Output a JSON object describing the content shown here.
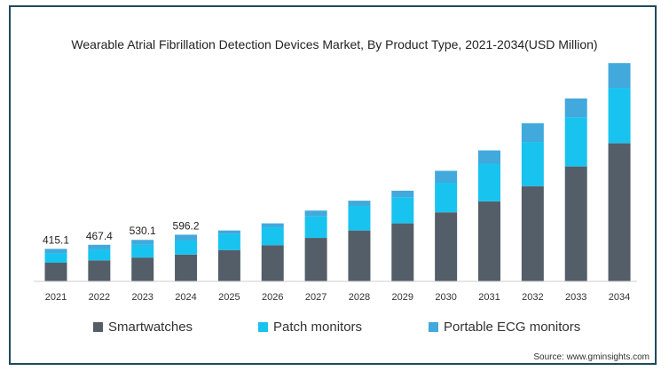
{
  "chart_data": {
    "type": "bar",
    "stacked": true,
    "title": "Wearable Atrial Fibrillation Detection Devices Market, By Product Type, 2021-2034(USD Million)",
    "categories": [
      "2021",
      "2022",
      "2023",
      "2024",
      "2025",
      "2026",
      "2027",
      "2028",
      "2029",
      "2030",
      "2031",
      "2032",
      "2033",
      "2034"
    ],
    "series": [
      {
        "name": "Smartwatches",
        "color": "#545e68",
        "values": [
          238,
          268,
          304,
          342,
          400,
          462,
          555,
          650,
          741,
          882,
          1022,
          1216,
          1467,
          1765
        ]
      },
      {
        "name": "Patch monitors",
        "color": "#18c3ef",
        "values": [
          124,
          141,
          162,
          180,
          205,
          229,
          276,
          313,
          333,
          376,
          480,
          563,
          627,
          706
        ]
      },
      {
        "name": "Portable ECG monitors",
        "color": "#41a9dc",
        "values": [
          53,
          58,
          64,
          74,
          45,
          50,
          73,
          67,
          84,
          154,
          170,
          241,
          242,
          316
        ]
      }
    ],
    "data_labels": [
      {
        "category": "2021",
        "text": "415.1"
      },
      {
        "category": "2022",
        "text": "467.4"
      },
      {
        "category": "2023",
        "text": "530.1"
      },
      {
        "category": "2024",
        "text": "596.2"
      }
    ],
    "ylim": [
      0,
      2800
    ],
    "grid": false,
    "legend_position": "bottom"
  },
  "source": "Source: www.gminsights.com"
}
